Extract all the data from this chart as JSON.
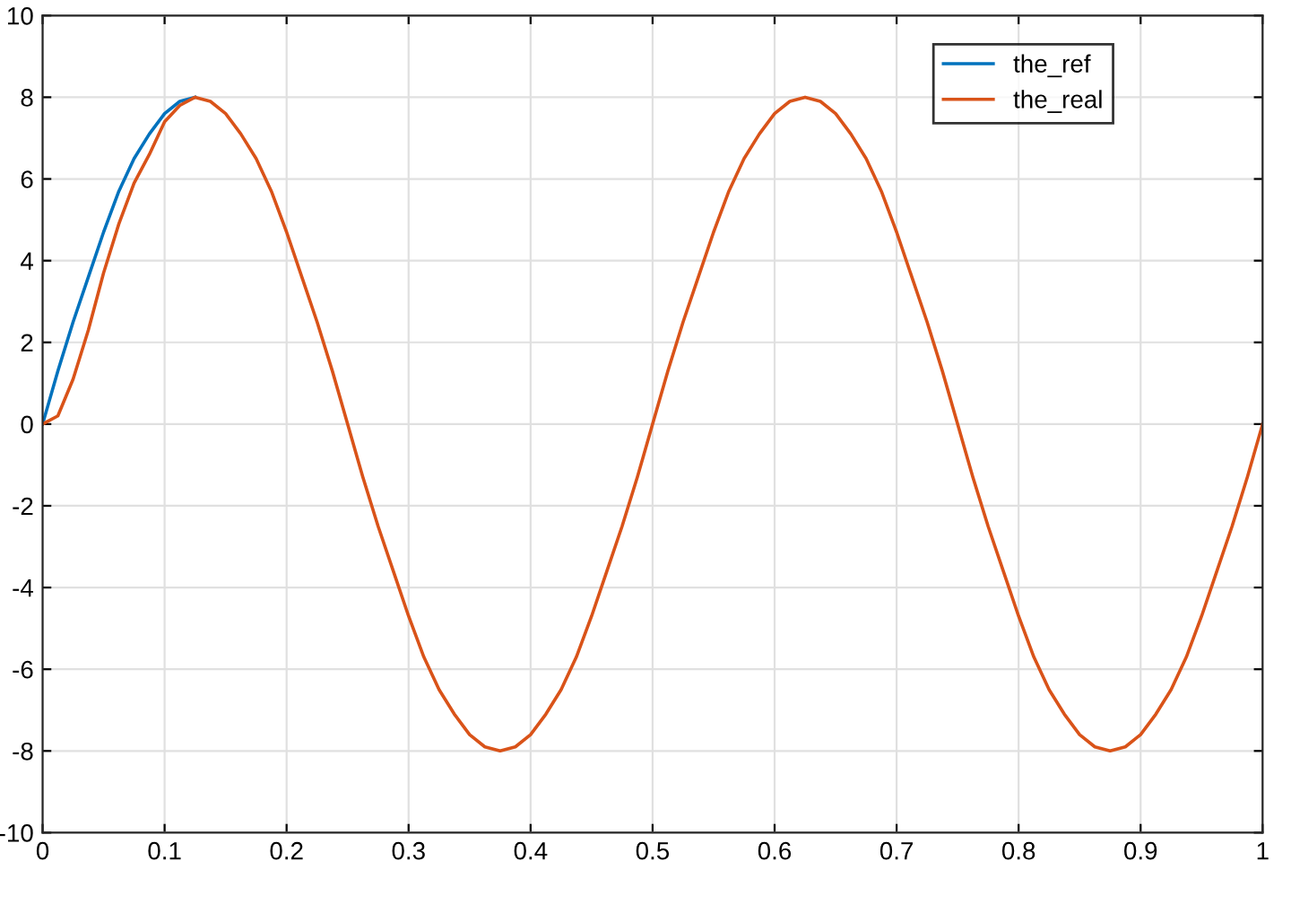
{
  "chart_data": {
    "type": "line",
    "x": [
      0,
      0.0125,
      0.025,
      0.0375,
      0.05,
      0.0625,
      0.075,
      0.0875,
      0.1,
      0.1125,
      0.125,
      0.1375,
      0.15,
      0.1625,
      0.175,
      0.1875,
      0.2,
      0.2125,
      0.225,
      0.2375,
      0.25,
      0.2625,
      0.275,
      0.2875,
      0.3,
      0.3125,
      0.325,
      0.3375,
      0.35,
      0.3625,
      0.375,
      0.3875,
      0.4,
      0.4125,
      0.425,
      0.4375,
      0.45,
      0.4625,
      0.475,
      0.4875,
      0.5,
      0.5125,
      0.525,
      0.5375,
      0.55,
      0.5625,
      0.575,
      0.5875,
      0.6,
      0.6125,
      0.625,
      0.6375,
      0.65,
      0.6625,
      0.675,
      0.6875,
      0.7,
      0.7125,
      0.725,
      0.7375,
      0.75,
      0.7625,
      0.775,
      0.7875,
      0.8,
      0.8125,
      0.825,
      0.8375,
      0.85,
      0.8625,
      0.875,
      0.8875,
      0.9,
      0.9125,
      0.925,
      0.9375,
      0.95,
      0.9625,
      0.975,
      0.9875,
      1
    ],
    "series": [
      {
        "name": "the_ref",
        "color": "#0072bd",
        "values": [
          0,
          1.3,
          2.5,
          3.6,
          4.7,
          5.7,
          6.5,
          7.1,
          7.6,
          7.9,
          8,
          null,
          null,
          null,
          null,
          null,
          null,
          null,
          null,
          null,
          null,
          null,
          null,
          null,
          null,
          null,
          null,
          null,
          null,
          null,
          null,
          null,
          null,
          null,
          null,
          null,
          null,
          null,
          null,
          null,
          null,
          null,
          null,
          null,
          null,
          null,
          null,
          null,
          null,
          null,
          null,
          null,
          null,
          null,
          null,
          null,
          null,
          null,
          null,
          null,
          null,
          null,
          null,
          null,
          null,
          null,
          null,
          null,
          null,
          null,
          null,
          null,
          null,
          null,
          null,
          null,
          null,
          null,
          null,
          null,
          null
        ]
      },
      {
        "name": "the_real",
        "color": "#d95319",
        "values": [
          0,
          0.2,
          1.1,
          2.3,
          3.7,
          4.9,
          5.9,
          6.6,
          7.4,
          7.8,
          8,
          7.9,
          7.6,
          7.1,
          6.5,
          5.7,
          4.7,
          3.6,
          2.5,
          1.3,
          0,
          -1.3,
          -2.5,
          -3.6,
          -4.7,
          -5.7,
          -6.5,
          -7.1,
          -7.6,
          -7.9,
          -8,
          -7.9,
          -7.6,
          -7.1,
          -6.5,
          -5.7,
          -4.7,
          -3.6,
          -2.5,
          -1.3,
          0,
          1.3,
          2.5,
          3.6,
          4.7,
          5.7,
          6.5,
          7.1,
          7.6,
          7.9,
          8,
          7.9,
          7.6,
          7.1,
          6.5,
          5.7,
          4.7,
          3.6,
          2.5,
          1.3,
          0,
          -1.3,
          -2.5,
          -3.6,
          -4.7,
          -5.7,
          -6.5,
          -7.1,
          -7.6,
          -7.9,
          -8,
          -7.9,
          -7.6,
          -7.1,
          -6.5,
          -5.7,
          -4.7,
          -3.6,
          -2.5,
          -1.3,
          0
        ]
      }
    ],
    "xlim": [
      0,
      1
    ],
    "xticks": [
      0,
      0.1,
      0.2,
      0.3,
      0.4,
      0.5,
      0.6,
      0.7,
      0.8,
      0.9,
      1
    ],
    "ylim": [
      -10,
      10
    ],
    "yticks": [
      -10,
      -8,
      -6,
      -4,
      -2,
      0,
      2,
      4,
      6,
      8,
      10
    ],
    "grid": true,
    "legend": "top right",
    "marker": "none",
    "line_style": "solid"
  }
}
